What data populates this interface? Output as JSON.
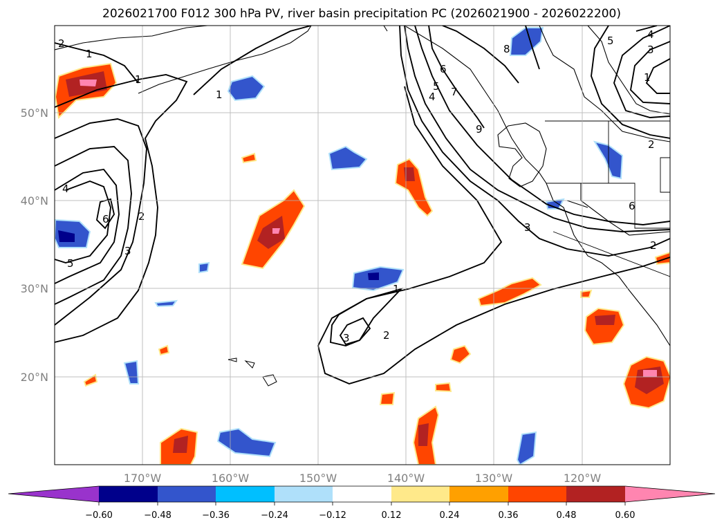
{
  "title": "2026021700 F012 300 hPa PV, river basin precipitation PC (2026021900 - 2026022200)",
  "map": {
    "lon_labels": [
      "170°W",
      "160°W",
      "150°W",
      "140°W",
      "130°W",
      "120°W"
    ],
    "lat_labels": [
      "50°N",
      "40°N",
      "30°N",
      "20°N"
    ],
    "lon_range": [
      -180,
      -110
    ],
    "lat_range": [
      10,
      60
    ],
    "grid": true
  },
  "colorbar": {
    "ticks": [
      "−0.60",
      "−0.48",
      "−0.36",
      "−0.24",
      "−0.12",
      "0.12",
      "0.24",
      "0.36",
      "0.48",
      "0.60"
    ],
    "colors": [
      "#9933cc",
      "#00008b",
      "#3355cc",
      "#00bfff",
      "#afe0fa",
      "#ffffff",
      "#ffe98a",
      "#ffa000",
      "#ff4500",
      "#b22222",
      "#ff85b0"
    ]
  },
  "contour_labels": [
    "2",
    "1",
    "1",
    "1",
    "4",
    "6",
    "2",
    "3",
    "5",
    "5",
    "4",
    "6",
    "7",
    "8",
    "9",
    "5",
    "4",
    "3",
    "1",
    "2",
    "6",
    "3",
    "2",
    "1",
    "3",
    "2"
  ]
}
